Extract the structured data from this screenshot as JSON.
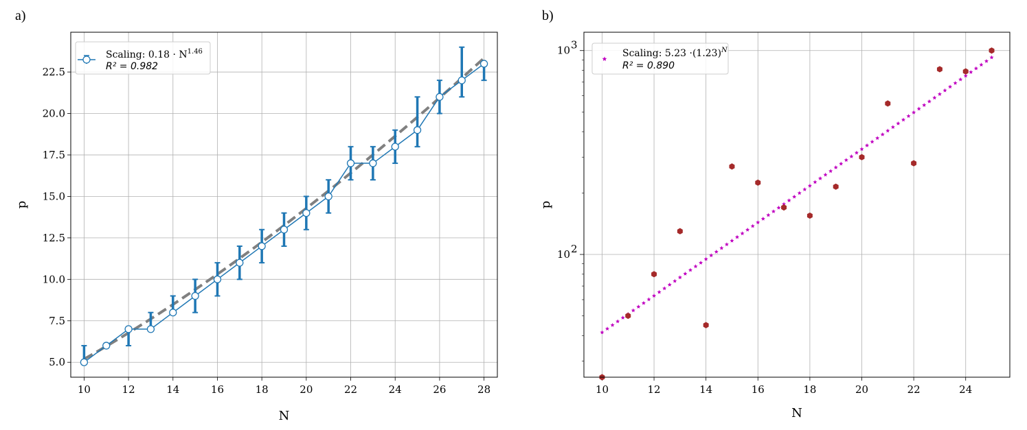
{
  "panels": {
    "a_label": "a)",
    "b_label": "b)"
  },
  "chart_data": [
    {
      "type": "line",
      "panel": "a)",
      "xlabel": "N",
      "ylabel": "p",
      "xlim": [
        9.4,
        28.6
      ],
      "ylim": [
        4.1,
        24.9
      ],
      "xticks": [
        10,
        12,
        14,
        16,
        18,
        20,
        22,
        24,
        26,
        28
      ],
      "xtick_labels": [
        "10",
        "12",
        "14",
        "16",
        "18",
        "20",
        "22",
        "24",
        "26",
        "28"
      ],
      "yticks": [
        5.0,
        7.5,
        10.0,
        12.5,
        15.0,
        17.5,
        20.0,
        22.5
      ],
      "ytick_labels": [
        "5.0",
        "7.5",
        "10.0",
        "12.5",
        "15.0",
        "17.5",
        "20.0",
        "22.5"
      ],
      "grid": true,
      "legend_position": "top-left",
      "series": [
        {
          "name": "Scaling: 0.18 · N^1.46",
          "legend_main": "Scaling: 0.18 · N",
          "legend_sup": "1.46",
          "legend_r2": "R² = 0.982",
          "color": "#1f77b4",
          "x": [
            10,
            11,
            12,
            13,
            14,
            15,
            16,
            17,
            18,
            19,
            20,
            21,
            22,
            23,
            24,
            25,
            26,
            27,
            28
          ],
          "y": [
            5,
            6,
            7,
            7,
            8,
            9,
            10,
            11,
            12,
            13,
            14,
            15,
            17,
            17,
            18,
            19,
            21,
            22,
            23
          ],
          "err_low": [
            5,
            6,
            6,
            7,
            8,
            8,
            9,
            10,
            11,
            12,
            13,
            14,
            16,
            16,
            17,
            18,
            20,
            21,
            22
          ],
          "err_high": [
            6,
            6,
            7,
            8,
            9,
            10,
            11,
            12,
            13,
            14,
            15,
            16,
            18,
            18,
            19,
            21,
            22,
            24,
            23
          ]
        }
      ],
      "fit": {
        "coefficient": 0.18,
        "exponent": 1.46,
        "color": "#808080",
        "style": "dashed"
      }
    },
    {
      "type": "scatter",
      "panel": "b)",
      "xlabel": "N",
      "ylabel": "p",
      "yscale": "log",
      "xlim": [
        9.3,
        25.7
      ],
      "ylim": [
        25,
        1230
      ],
      "xticks": [
        10,
        12,
        14,
        16,
        18,
        20,
        22,
        24
      ],
      "xtick_labels": [
        "10",
        "12",
        "14",
        "16",
        "18",
        "20",
        "22",
        "24"
      ],
      "yticks": [
        100,
        1000
      ],
      "ytick_labels_base": [
        "10",
        "10"
      ],
      "ytick_labels_exp": [
        "2",
        "3"
      ],
      "grid": true,
      "legend_position": "top-left",
      "series": [
        {
          "points_color": "#a52a2a",
          "x": [
            10,
            11,
            12,
            13,
            14,
            15,
            16,
            17,
            18,
            19,
            20,
            21,
            22,
            23,
            24,
            25
          ],
          "y": [
            25,
            50,
            80,
            130,
            45,
            270,
            225,
            170,
            155,
            215,
            300,
            550,
            280,
            810,
            790,
            1000
          ]
        }
      ],
      "fit": {
        "name": "Scaling: 5.23 ·(1.23)^N",
        "legend_main": "Scaling: 5.23 ·(1.23)",
        "legend_sup": "N",
        "legend_r2": "R² = 0.890",
        "coefficient": 5.23,
        "base": 1.23,
        "color": "#c000c0",
        "marker": "star"
      }
    }
  ]
}
